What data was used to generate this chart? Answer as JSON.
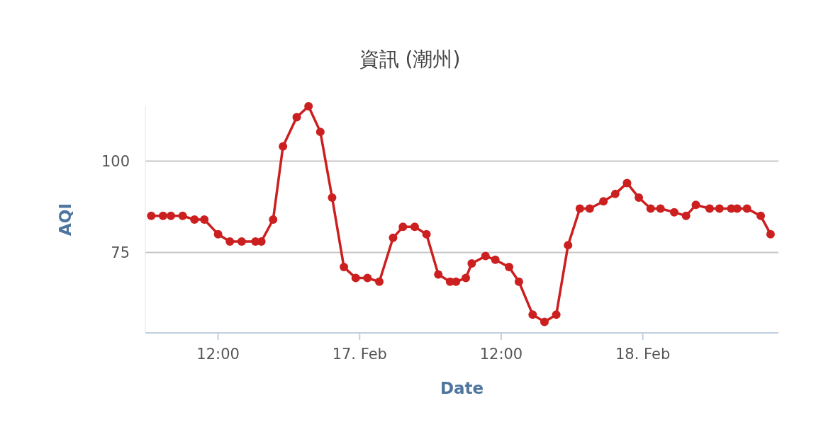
{
  "chart_data": {
    "type": "line",
    "title": "資訊 (潮州)",
    "xlabel": "Date",
    "ylabel": "AQI",
    "x": [
      "--02-16T06:20",
      "--02-16T07:20",
      "--02-16T08:00",
      "--02-16T09:00",
      "--02-16T10:00",
      "--02-16T10:50",
      "--02-16T12:00",
      "--02-16T13:00",
      "--02-16T14:00",
      "--02-16T15:10",
      "--02-16T15:40",
      "--02-16T16:40",
      "--02-16T17:30",
      "--02-16T18:40",
      "--02-16T19:40",
      "--02-16T20:40",
      "--02-16T21:40",
      "--02-16T22:40",
      "--02-16T23:40",
      "--02-17T00:40",
      "--02-17T01:40",
      "--02-17T02:50",
      "--02-17T03:40",
      "--02-17T04:40",
      "--02-17T05:40",
      "--02-17T06:40",
      "--02-17T07:40",
      "--02-17T08:10",
      "--02-17T09:00",
      "--02-17T09:30",
      "--02-17T10:40",
      "--02-17T11:30",
      "--02-17T12:40",
      "--02-17T13:30",
      "--02-17T14:40",
      "--02-17T15:40",
      "--02-17T16:40",
      "--02-17T17:40",
      "--02-17T18:40",
      "--02-17T19:30",
      "--02-17T20:40",
      "--02-17T21:40",
      "--02-17T22:40",
      "--02-17T23:40",
      "--02-18T00:40",
      "--02-18T01:30",
      "--02-18T02:40",
      "--02-18T03:40",
      "--02-18T04:30",
      "--02-18T05:40",
      "--02-18T06:30",
      "--02-18T07:30",
      "--02-18T08:00",
      "--02-18T08:50",
      "--02-18T10:00",
      "--02-18T10:50"
    ],
    "values": [
      85,
      85,
      85,
      85,
      84,
      84,
      80,
      78,
      78,
      78,
      78,
      84,
      104,
      112,
      115,
      108,
      90,
      71,
      68,
      68,
      67,
      79,
      82,
      82,
      80,
      69,
      67,
      67,
      68,
      72,
      74,
      73,
      71,
      67,
      58,
      56,
      58,
      77,
      87,
      87,
      89,
      91,
      94,
      90,
      87,
      87,
      86,
      85,
      88,
      87,
      87,
      87,
      87,
      87,
      85,
      80
    ],
    "color": "#cc1f1f",
    "marker": "circle",
    "grid": "y",
    "xlim": [
      "--02-16T05:50",
      "--02-18T11:30"
    ],
    "ylim": [
      53,
      115
    ],
    "xticks": [
      {
        "value": "--02-16T12:00",
        "label": "12:00"
      },
      {
        "value": "--02-17T00:00",
        "label": "17. Feb"
      },
      {
        "value": "--02-17T12:00",
        "label": "12:00"
      },
      {
        "value": "--02-18T00:00",
        "label": "18. Feb"
      }
    ],
    "yticks": [
      75,
      100
    ]
  }
}
